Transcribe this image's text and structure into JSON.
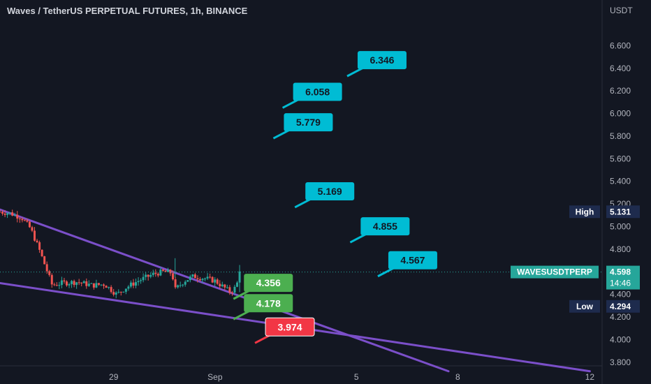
{
  "header": {
    "title": "Waves / TetherUS PERPETUAL FUTURES, 1h, BINANCE",
    "currency": "USDT"
  },
  "colors": {
    "background": "#131722",
    "up": "#26a69a",
    "down": "#ef5350",
    "trendline": "#7b4fc9",
    "target_label": "#00bcd4",
    "support_label": "#4caf50",
    "stop_label": "#f23645",
    "axis_text": "#b2b5be"
  },
  "chart_data": {
    "type": "candlestick",
    "symbol": "WAVESUSDTPERP",
    "interval": "1h",
    "y_axis": {
      "ylim": [
        3.7,
        6.8
      ],
      "ticks": [
        3.8,
        4.0,
        4.2,
        4.4,
        4.6,
        4.8,
        5.0,
        5.2,
        5.4,
        5.6,
        5.8,
        6.0,
        6.2,
        6.4,
        6.6
      ]
    },
    "y_tick_labels": [
      "3.800",
      "4.000",
      "4.200",
      "4.400",
      "4.600",
      "4.800",
      "5.000",
      "5.200",
      "5.400",
      "5.600",
      "5.800",
      "6.000",
      "6.200",
      "6.400",
      "6.600"
    ],
    "x_axis": {
      "x_range": [
        0,
        196
      ],
      "ticks": [
        {
          "x": 37,
          "label": "29"
        },
        {
          "x": 70,
          "label": "Sep"
        },
        {
          "x": 116,
          "label": "5"
        },
        {
          "x": 149,
          "label": "8"
        },
        {
          "x": 192,
          "label": "12"
        }
      ]
    },
    "price_path": [
      [
        0,
        5.13
      ],
      [
        3,
        5.12
      ],
      [
        7,
        5.08
      ],
      [
        10,
        4.98
      ],
      [
        13,
        4.78
      ],
      [
        17,
        4.48
      ],
      [
        20,
        4.5
      ],
      [
        25,
        4.51
      ],
      [
        30,
        4.48
      ],
      [
        34,
        4.49
      ],
      [
        38,
        4.4
      ],
      [
        41,
        4.46
      ],
      [
        45,
        4.52
      ],
      [
        50,
        4.58
      ],
      [
        53,
        4.6
      ],
      [
        56,
        4.59
      ],
      [
        57,
        4.44
      ],
      [
        60,
        4.52
      ],
      [
        63,
        4.56
      ],
      [
        67,
        4.54
      ],
      [
        70,
        4.52
      ],
      [
        73,
        4.46
      ],
      [
        75,
        4.42
      ],
      [
        77,
        4.47
      ],
      [
        78,
        4.62
      ]
    ],
    "last_price": {
      "value": 4.598,
      "label": "4.598",
      "symbol": "WAVESUSDTPERP",
      "countdown": "14:46"
    },
    "high": {
      "label": "High",
      "value": 5.131,
      "value_label": "5.131"
    },
    "low": {
      "label": "Low",
      "value": 4.294,
      "value_label": "4.294"
    },
    "trendlines": [
      {
        "name": "descending-resistance",
        "x1": 0,
        "y1": 5.15,
        "x2": 146,
        "y2": 3.72
      },
      {
        "name": "lower-support",
        "x1": 0,
        "y1": 4.5,
        "x2": 192,
        "y2": 3.72
      }
    ],
    "annotations": [
      {
        "label": "6.346",
        "value": 6.346,
        "kind": "target",
        "x": 113,
        "y": 6.33
      },
      {
        "label": "6.058",
        "value": 6.058,
        "kind": "target",
        "x": 92,
        "y": 6.05
      },
      {
        "label": "5.779",
        "value": 5.779,
        "kind": "target",
        "x": 89,
        "y": 5.78
      },
      {
        "label": "5.169",
        "value": 5.169,
        "kind": "target",
        "x": 96,
        "y": 5.17
      },
      {
        "label": "4.855",
        "value": 4.855,
        "kind": "target",
        "x": 114,
        "y": 4.86
      },
      {
        "label": "4.567",
        "value": 4.567,
        "kind": "target",
        "x": 123,
        "y": 4.56
      },
      {
        "label": "4.356",
        "value": 4.356,
        "kind": "support",
        "x": 76,
        "y": 4.36
      },
      {
        "label": "4.178",
        "value": 4.178,
        "kind": "support",
        "x": 76,
        "y": 4.18
      },
      {
        "label": "3.974",
        "value": 3.974,
        "kind": "stop",
        "x": 83,
        "y": 3.97
      }
    ]
  }
}
